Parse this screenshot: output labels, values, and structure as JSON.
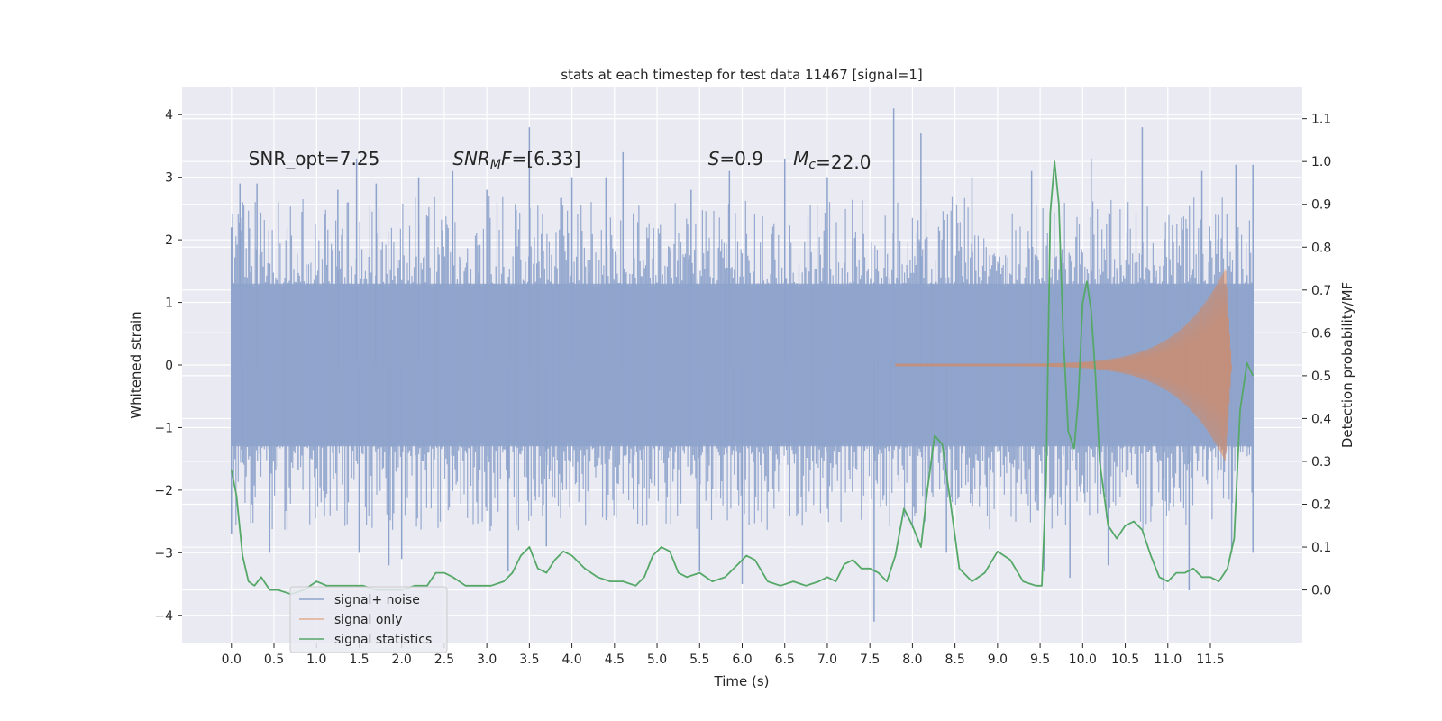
{
  "chart_data": {
    "type": "line",
    "title": "stats at each timestep for test data 11467 [signal=1]",
    "xlabel": "Time (s)",
    "ylabel_left": "Whitened strain",
    "ylabel_right": "Detection probability/MF",
    "xlim": [
      -0.58,
      12.58
    ],
    "ylim_left": [
      -4.45,
      4.45
    ],
    "ylim_right": [
      -0.125,
      1.175
    ],
    "x_ticks": [
      0.0,
      0.5,
      1.0,
      1.5,
      2.0,
      2.5,
      3.0,
      3.5,
      4.0,
      4.5,
      5.0,
      5.5,
      6.0,
      6.5,
      7.0,
      7.5,
      8.0,
      8.5,
      9.0,
      9.5,
      10.0,
      10.5,
      11.0,
      11.5
    ],
    "x_tick_labels": [
      "0.0",
      "0.5",
      "1.0",
      "1.5",
      "2.0",
      "2.5",
      "3.0",
      "3.5",
      "4.0",
      "4.5",
      "5.0",
      "5.5",
      "6.0",
      "6.5",
      "7.0",
      "7.5",
      "8.0",
      "8.5",
      "9.0",
      "9.5",
      "10.0",
      "10.5",
      "11.0",
      "11.5"
    ],
    "y_left_ticks": [
      4,
      3,
      2,
      1,
      0,
      -1,
      -2,
      -3,
      -4
    ],
    "y_left_tick_labels": [
      "4",
      "3",
      "2",
      "1",
      "0",
      "−1",
      "−2",
      "−3",
      "−4"
    ],
    "y_right_ticks": [
      1.1,
      1.0,
      0.9,
      0.8,
      0.7,
      0.6,
      0.5,
      0.4,
      0.3,
      0.2,
      0.1,
      0.0
    ],
    "y_right_tick_labels": [
      "1.1",
      "1.0",
      "0.9",
      "0.8",
      "0.7",
      "0.6",
      "0.5",
      "0.4",
      "0.3",
      "0.2",
      "0.1",
      "0.0"
    ],
    "grid": true,
    "legend_position": "bottom-left",
    "colors": {
      "background": "#eaeaf2",
      "grid": "#ffffff",
      "signal_noise": "#8ea3cb",
      "signal_only": "#dd8452",
      "signal_statistics": "#55a868"
    },
    "annotations": [
      {
        "text": "SNR_opt=7.25",
        "x": 0.2,
        "y": 3.3
      },
      {
        "text": "SNR_MF=[6.33]",
        "x": 2.6,
        "y": 3.3
      },
      {
        "text": "S=0.9",
        "x": 5.6,
        "y": 3.3
      },
      {
        "text": "M_c=22.0",
        "x": 6.6,
        "y": 3.3
      }
    ],
    "series": [
      {
        "name": "signal+ noise",
        "kind": "noise",
        "t_range": [
          0.0,
          12.0
        ],
        "envelope": {
          "upper": 1.3,
          "lower": -1.3
        },
        "peaks": [
          {
            "t": 0.0,
            "v": 2.2
          },
          {
            "t": 0.1,
            "v": 2.9
          },
          {
            "t": 0.3,
            "v": 2.9
          },
          {
            "t": 0.55,
            "v": 2.6
          },
          {
            "t": 1.25,
            "v": 2.8
          },
          {
            "t": 1.47,
            "v": 3.3
          },
          {
            "t": 1.7,
            "v": 2.9
          },
          {
            "t": 2.2,
            "v": 3.0
          },
          {
            "t": 2.6,
            "v": 3.1
          },
          {
            "t": 3.0,
            "v": 2.8
          },
          {
            "t": 3.5,
            "v": 3.8
          },
          {
            "t": 4.0,
            "v": 3.0
          },
          {
            "t": 4.4,
            "v": 3.0
          },
          {
            "t": 4.6,
            "v": 3.4
          },
          {
            "t": 5.4,
            "v": 2.8
          },
          {
            "t": 5.85,
            "v": 3.1
          },
          {
            "t": 6.5,
            "v": 3.3
          },
          {
            "t": 7.0,
            "v": 3.0
          },
          {
            "t": 7.78,
            "v": 4.1
          },
          {
            "t": 8.1,
            "v": 3.7
          },
          {
            "t": 8.7,
            "v": 3.0
          },
          {
            "t": 9.4,
            "v": 3.1
          },
          {
            "t": 10.1,
            "v": 3.3
          },
          {
            "t": 10.7,
            "v": 3.8
          },
          {
            "t": 11.4,
            "v": 3.1
          },
          {
            "t": 11.8,
            "v": 3.2
          },
          {
            "t": 12.0,
            "v": 3.2
          },
          {
            "t": 0.0,
            "v": -2.7
          },
          {
            "t": 0.45,
            "v": -3.0
          },
          {
            "t": 1.5,
            "v": -3.0
          },
          {
            "t": 1.85,
            "v": -3.2
          },
          {
            "t": 2.0,
            "v": -3.1
          },
          {
            "t": 3.25,
            "v": -3.3
          },
          {
            "t": 3.7,
            "v": -2.9
          },
          {
            "t": 5.5,
            "v": -3.3
          },
          {
            "t": 6.0,
            "v": -3.5
          },
          {
            "t": 7.55,
            "v": -4.1
          },
          {
            "t": 8.4,
            "v": -3.0
          },
          {
            "t": 9.55,
            "v": -3.3
          },
          {
            "t": 9.85,
            "v": -3.4
          },
          {
            "t": 10.3,
            "v": -3.2
          },
          {
            "t": 10.95,
            "v": -3.6
          },
          {
            "t": 11.25,
            "v": -3.6
          },
          {
            "t": 11.75,
            "v": -3.0
          },
          {
            "t": 12.0,
            "v": -3.0
          }
        ]
      },
      {
        "name": "signal only",
        "kind": "chirp",
        "t_start": 7.8,
        "t_merger": 11.68,
        "t_end": 11.75,
        "amplitude_start": 0.02,
        "amplitude_max": 1.55
      },
      {
        "name": "signal statistics",
        "kind": "line",
        "axis": "right",
        "x": [
          0.0,
          0.06,
          0.13,
          0.2,
          0.27,
          0.35,
          0.45,
          0.55,
          0.7,
          0.85,
          1.0,
          1.12,
          1.25,
          1.4,
          1.55,
          1.7,
          1.85,
          2.0,
          2.15,
          2.3,
          2.4,
          2.5,
          2.6,
          2.75,
          2.9,
          3.05,
          3.2,
          3.3,
          3.4,
          3.5,
          3.6,
          3.7,
          3.8,
          3.9,
          4.0,
          4.15,
          4.3,
          4.45,
          4.6,
          4.75,
          4.85,
          4.95,
          5.05,
          5.15,
          5.25,
          5.35,
          5.5,
          5.65,
          5.8,
          5.95,
          6.05,
          6.15,
          6.3,
          6.45,
          6.6,
          6.75,
          6.9,
          7.0,
          7.1,
          7.2,
          7.3,
          7.4,
          7.5,
          7.6,
          7.7,
          7.8,
          7.9,
          8.0,
          8.1,
          8.18,
          8.26,
          8.35,
          8.45,
          8.55,
          8.7,
          8.85,
          9.0,
          9.15,
          9.3,
          9.45,
          9.52,
          9.57,
          9.62,
          9.67,
          9.72,
          9.77,
          9.83,
          9.9,
          9.95,
          10.0,
          10.05,
          10.1,
          10.15,
          10.2,
          10.3,
          10.4,
          10.5,
          10.6,
          10.7,
          10.8,
          10.9,
          11.0,
          11.1,
          11.2,
          11.3,
          11.4,
          11.5,
          11.6,
          11.7,
          11.78,
          11.85,
          11.93,
          12.0
        ],
        "values": [
          0.28,
          0.22,
          0.08,
          0.02,
          0.01,
          0.03,
          0.0,
          0.0,
          -0.01,
          0.0,
          0.02,
          0.01,
          0.01,
          0.01,
          0.01,
          0.0,
          0.0,
          0.0,
          0.01,
          0.01,
          0.04,
          0.04,
          0.03,
          0.01,
          0.01,
          0.01,
          0.02,
          0.04,
          0.08,
          0.1,
          0.05,
          0.04,
          0.07,
          0.09,
          0.08,
          0.05,
          0.03,
          0.02,
          0.02,
          0.01,
          0.03,
          0.08,
          0.1,
          0.09,
          0.04,
          0.03,
          0.04,
          0.02,
          0.03,
          0.06,
          0.08,
          0.07,
          0.02,
          0.01,
          0.02,
          0.01,
          0.02,
          0.03,
          0.02,
          0.06,
          0.07,
          0.05,
          0.05,
          0.04,
          0.02,
          0.08,
          0.19,
          0.15,
          0.1,
          0.24,
          0.36,
          0.34,
          0.2,
          0.05,
          0.02,
          0.04,
          0.09,
          0.07,
          0.02,
          0.01,
          0.01,
          0.25,
          0.88,
          1.0,
          0.9,
          0.6,
          0.37,
          0.33,
          0.45,
          0.67,
          0.72,
          0.65,
          0.5,
          0.3,
          0.15,
          0.12,
          0.15,
          0.16,
          0.14,
          0.08,
          0.03,
          0.02,
          0.04,
          0.04,
          0.05,
          0.03,
          0.03,
          0.02,
          0.05,
          0.12,
          0.42,
          0.53,
          0.5
        ]
      }
    ]
  }
}
